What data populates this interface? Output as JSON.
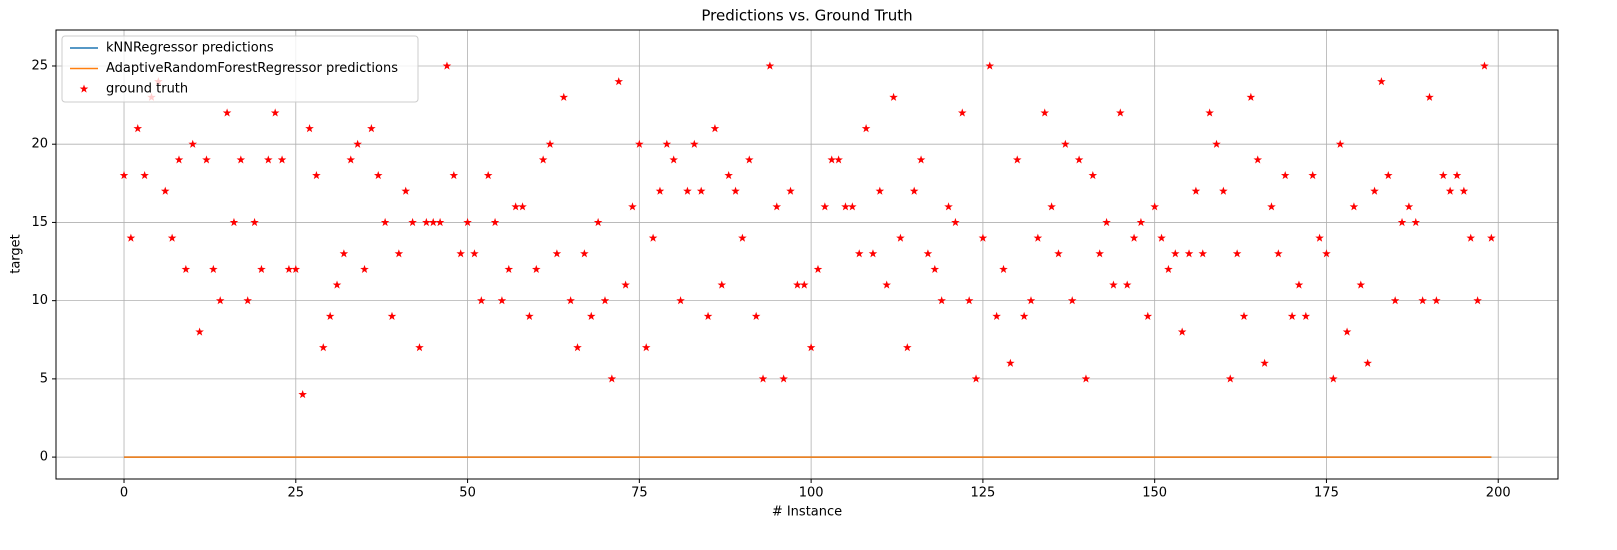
{
  "chart_data": {
    "type": "line",
    "title": "Predictions vs. Ground Truth",
    "xlabel": "# Instance",
    "ylabel": "target",
    "xlim": [
      -9.9,
      208.7
    ],
    "ylim": [
      -1.4,
      27.3
    ],
    "xticks": [
      0,
      25,
      50,
      75,
      100,
      125,
      150,
      175,
      200
    ],
    "yticks": [
      0,
      5,
      10,
      15,
      20,
      25
    ],
    "grid": true,
    "legend": "upper-left",
    "x": [
      0,
      1,
      2,
      3,
      4,
      5,
      6,
      7,
      8,
      9,
      10,
      11,
      12,
      13,
      14,
      15,
      16,
      17,
      18,
      19,
      20,
      21,
      22,
      23,
      24,
      25,
      26,
      27,
      28,
      29,
      30,
      31,
      32,
      33,
      34,
      35,
      36,
      37,
      38,
      39,
      40,
      41,
      42,
      43,
      44,
      45,
      46,
      47,
      48,
      49,
      50,
      51,
      52,
      53,
      54,
      55,
      56,
      57,
      58,
      59,
      60,
      61,
      62,
      63,
      64,
      65,
      66,
      67,
      68,
      69,
      70,
      71,
      72,
      73,
      74,
      75,
      76,
      77,
      78,
      79,
      80,
      81,
      82,
      83,
      84,
      85,
      86,
      87,
      88,
      89,
      90,
      91,
      92,
      93,
      94,
      95,
      96,
      97,
      98,
      99,
      100,
      101,
      102,
      103,
      104,
      105,
      106,
      107,
      108,
      109,
      110,
      111,
      112,
      113,
      114,
      115,
      116,
      117,
      118,
      119,
      120,
      121,
      122,
      123,
      124,
      125,
      126,
      127,
      128,
      129,
      130,
      131,
      132,
      133,
      134,
      135,
      136,
      137,
      138,
      139,
      140,
      141,
      142,
      143,
      144,
      145,
      146,
      147,
      148,
      149,
      150,
      151,
      152,
      153,
      154,
      155,
      156,
      157,
      158,
      159,
      160,
      161,
      162,
      163,
      164,
      165,
      166,
      167,
      168,
      169,
      170,
      171,
      172,
      173,
      174,
      175,
      176,
      177,
      178,
      179,
      180,
      181,
      182,
      183,
      184,
      185,
      186,
      187,
      188,
      189,
      190,
      191,
      192,
      193,
      194,
      195,
      196,
      197,
      198,
      199
    ],
    "series": [
      {
        "name": "kNNRegressor predictions",
        "color": "#1f77b4",
        "style": "line",
        "values": [
          0,
          0,
          0,
          0,
          0,
          0,
          0,
          0,
          0,
          0,
          0,
          0,
          0,
          0,
          0,
          0,
          0,
          0,
          0,
          0,
          0,
          0,
          0,
          0,
          0,
          0,
          0,
          0,
          0,
          0,
          0,
          0,
          0,
          0,
          0,
          0,
          0,
          0,
          0,
          0,
          0,
          0,
          0,
          0,
          0,
          0,
          0,
          0,
          0,
          0,
          0,
          0,
          0,
          0,
          0,
          0,
          0,
          0,
          0,
          0,
          0,
          0,
          0,
          0,
          0,
          0,
          0,
          0,
          0,
          0,
          0,
          0,
          0,
          0,
          0,
          0,
          0,
          0,
          0,
          0,
          0,
          0,
          0,
          0,
          0,
          0,
          0,
          0,
          0,
          0,
          0,
          0,
          0,
          0,
          0,
          0,
          0,
          0,
          0,
          0,
          0,
          0,
          0,
          0,
          0,
          0,
          0,
          0,
          0,
          0,
          0,
          0,
          0,
          0,
          0,
          0,
          0,
          0,
          0,
          0,
          0,
          0,
          0,
          0,
          0,
          0,
          0,
          0,
          0,
          0,
          0,
          0,
          0,
          0,
          0,
          0,
          0,
          0,
          0,
          0,
          0,
          0,
          0,
          0,
          0,
          0,
          0,
          0,
          0,
          0,
          0,
          0,
          0,
          0,
          0,
          0,
          0,
          0,
          0,
          0,
          0,
          0,
          0,
          0,
          0,
          0,
          0,
          0,
          0,
          0,
          0,
          0,
          0,
          0,
          0,
          0,
          0,
          0,
          0,
          0,
          0,
          0,
          0,
          0,
          0,
          0,
          0,
          0,
          0,
          0,
          0,
          0,
          0,
          0,
          0,
          0,
          0,
          0,
          0,
          0
        ]
      },
      {
        "name": "AdaptiveRandomForestRegressor predictions",
        "color": "#ff7f0e",
        "style": "line",
        "values": [
          0,
          0,
          0,
          0,
          0,
          0,
          0,
          0,
          0,
          0,
          0,
          0,
          0,
          0,
          0,
          0,
          0,
          0,
          0,
          0,
          0,
          0,
          0,
          0,
          0,
          0,
          0,
          0,
          0,
          0,
          0,
          0,
          0,
          0,
          0,
          0,
          0,
          0,
          0,
          0,
          0,
          0,
          0,
          0,
          0,
          0,
          0,
          0,
          0,
          0,
          0,
          0,
          0,
          0,
          0,
          0,
          0,
          0,
          0,
          0,
          0,
          0,
          0,
          0,
          0,
          0,
          0,
          0,
          0,
          0,
          0,
          0,
          0,
          0,
          0,
          0,
          0,
          0,
          0,
          0,
          0,
          0,
          0,
          0,
          0,
          0,
          0,
          0,
          0,
          0,
          0,
          0,
          0,
          0,
          0,
          0,
          0,
          0,
          0,
          0,
          0,
          0,
          0,
          0,
          0,
          0,
          0,
          0,
          0,
          0,
          0,
          0,
          0,
          0,
          0,
          0,
          0,
          0,
          0,
          0,
          0,
          0,
          0,
          0,
          0,
          0,
          0,
          0,
          0,
          0,
          0,
          0,
          0,
          0,
          0,
          0,
          0,
          0,
          0,
          0,
          0,
          0,
          0,
          0,
          0,
          0,
          0,
          0,
          0,
          0,
          0,
          0,
          0,
          0,
          0,
          0,
          0,
          0,
          0,
          0,
          0,
          0,
          0,
          0,
          0,
          0,
          0,
          0,
          0,
          0,
          0,
          0,
          0,
          0,
          0,
          0,
          0,
          0,
          0,
          0,
          0,
          0,
          0,
          0,
          0,
          0,
          0,
          0,
          0,
          0,
          0,
          0,
          0,
          0,
          0,
          0,
          0,
          0,
          0,
          0
        ]
      },
      {
        "name": "ground truth",
        "color": "#ff0000",
        "style": "star",
        "values": [
          18,
          14,
          21,
          18,
          23,
          24,
          17,
          14,
          19,
          12,
          20,
          8,
          19,
          12,
          10,
          22,
          15,
          19,
          10,
          15,
          12,
          19,
          22,
          19,
          12,
          12,
          4,
          21,
          18,
          7,
          9,
          11,
          13,
          19,
          20,
          12,
          21,
          18,
          15,
          9,
          13,
          17,
          15,
          7,
          15,
          15,
          15,
          25,
          18,
          13,
          15,
          13,
          10,
          18,
          15,
          10,
          12,
          16,
          16,
          9,
          12,
          19,
          20,
          13,
          23,
          10,
          7,
          13,
          9,
          15,
          10,
          5,
          24,
          11,
          16,
          20,
          7,
          14,
          17,
          20,
          19,
          10,
          17,
          20,
          17,
          9,
          21,
          11,
          18,
          17,
          14,
          19,
          9,
          5,
          25,
          16,
          5,
          17,
          11,
          11,
          7,
          12,
          16,
          19,
          19,
          16,
          16,
          13,
          21,
          13,
          17,
          11,
          23,
          14,
          7,
          17,
          19,
          13,
          12,
          10,
          16,
          15,
          22,
          10,
          5,
          14,
          25,
          9,
          12,
          6,
          19,
          9,
          10,
          14,
          22,
          16,
          13,
          20,
          10,
          19,
          5,
          18,
          13,
          15,
          11,
          22,
          11,
          14,
          15,
          9,
          16,
          14,
          12,
          13,
          8,
          13,
          17,
          13,
          22,
          20,
          17,
          5,
          13,
          9,
          23,
          19,
          6,
          16,
          13,
          18,
          9,
          11,
          9,
          18,
          14,
          13,
          5,
          20,
          8,
          16,
          11,
          6,
          17,
          24,
          18,
          10,
          15,
          16,
          15,
          10,
          23,
          10,
          18,
          17,
          18,
          17,
          14,
          10,
          25,
          14
        ]
      }
    ]
  }
}
